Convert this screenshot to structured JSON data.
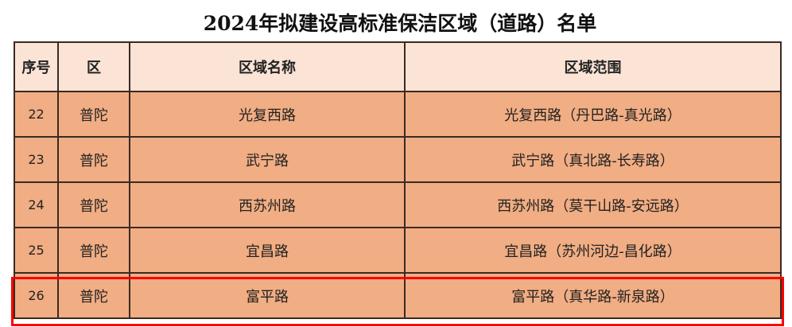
{
  "title": "2024年拟建设高标准保洁区域（道路）名单",
  "headers": [
    "序号",
    "区",
    "区域名称",
    "区域范围"
  ],
  "rows": [
    {
      "no": "22",
      "district": "普陀",
      "name": "光复西路",
      "range": "光复西路（丹巴路-真光路）"
    },
    {
      "no": "23",
      "district": "普陀",
      "name": "武宁路",
      "range": "武宁路（真北路-长寿路）"
    },
    {
      "no": "24",
      "district": "普陀",
      "name": "西苏州路",
      "range": "西苏州路（莫干山路-安远路）"
    },
    {
      "no": "25",
      "district": "普陀",
      "name": "宜昌路",
      "range": "宜昌路（苏州河边-昌化路）"
    },
    {
      "no": "26",
      "district": "普陀",
      "name": "富平路",
      "range": "富平路（真华路-新泉路）"
    }
  ],
  "highlight_color": "#ff0000"
}
